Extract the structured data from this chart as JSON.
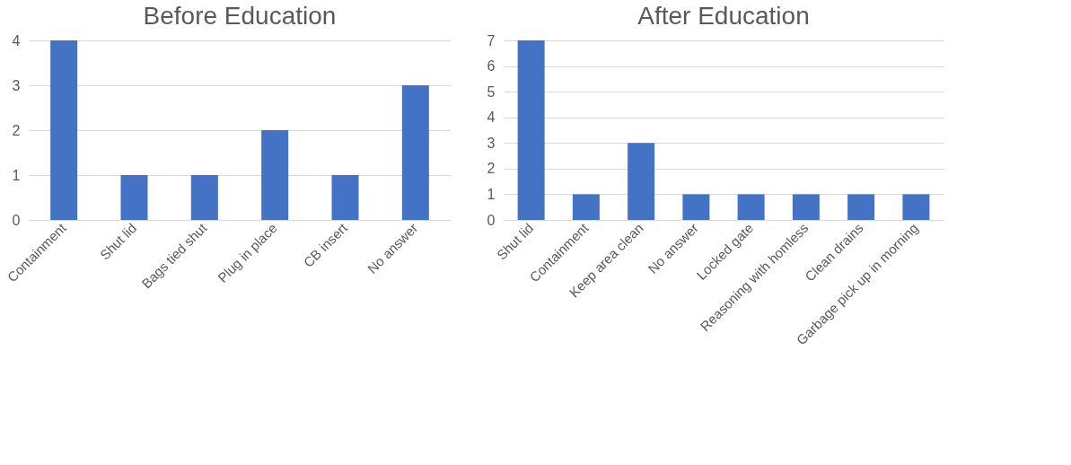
{
  "chart_data": [
    {
      "type": "bar",
      "title": "Before Education",
      "categories": [
        "Containment",
        "Shut lid",
        "Bags tied shut",
        "Plug in place",
        "CB insert",
        "No answer"
      ],
      "values": [
        4,
        1,
        1,
        2,
        1,
        3
      ],
      "color": "#4472c4",
      "ylim": [
        0,
        4
      ],
      "yticks": [
        0,
        1,
        2,
        3,
        4
      ],
      "grid": "y"
    },
    {
      "type": "bar",
      "title": "After Education",
      "categories": [
        "Shut lid",
        "Containment",
        "Keep area clean",
        "No answer",
        "Locked gate",
        "Reasoning with homless",
        "Clean drains",
        "Garbage pick up in morning"
      ],
      "values": [
        7,
        1,
        3,
        1,
        1,
        1,
        1,
        1
      ],
      "color": "#4472c4",
      "ylim": [
        0,
        7
      ],
      "yticks": [
        0,
        1,
        2,
        3,
        4,
        5,
        6,
        7
      ],
      "grid": "y"
    }
  ]
}
